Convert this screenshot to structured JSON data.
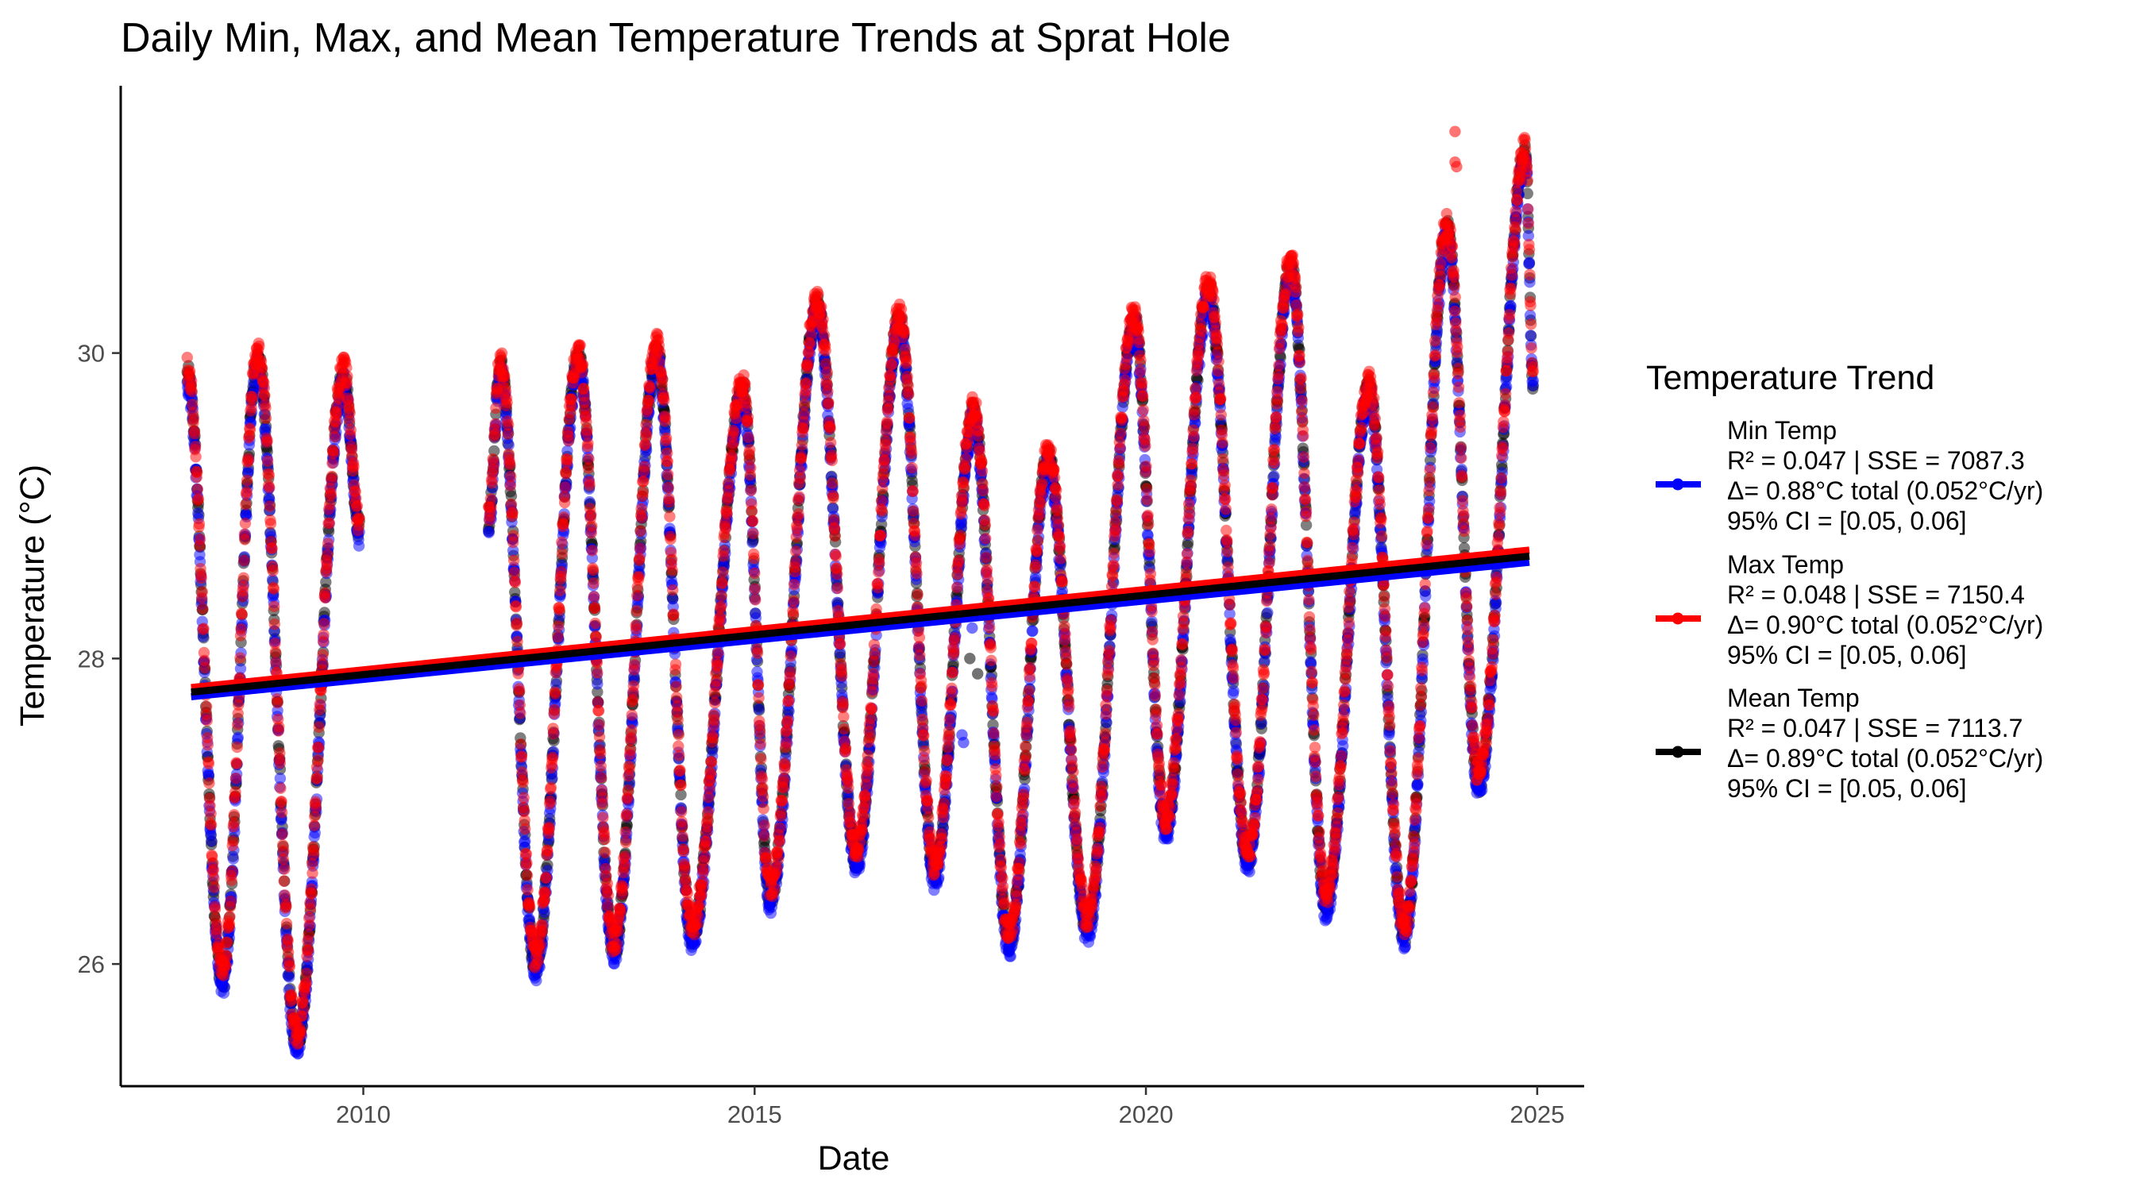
{
  "chart_data": {
    "type": "scatter",
    "title": "Daily Min, Max, and Mean Temperature Trends at Sprat Hole",
    "xlabel": "Date",
    "ylabel": "Temperature (°C)",
    "xlim": [
      2006.9,
      2025.6
    ],
    "ylim": [
      25.2,
      31.75
    ],
    "xticks": [
      2010,
      2015,
      2020,
      2025
    ],
    "yticks": [
      26,
      28,
      30
    ],
    "grid": false,
    "legend": {
      "title": "Temperature Trend",
      "placement": "right",
      "entries": [
        {
          "name": "Min Temp",
          "lines": [
            "R² = 0.047 | SSE = 7087.3",
            "Δ= 0.88°C total (0.052°C/yr)",
            "95% CI = [0.05, 0.06]"
          ]
        },
        {
          "name": "Max Temp",
          "lines": [
            "R² = 0.048 | SSE = 7150.4",
            "Δ= 0.90°C total (0.052°C/yr)",
            "95% CI = [0.05, 0.06]"
          ]
        },
        {
          "name": "Mean Temp",
          "lines": [
            "R² = 0.047 | SSE = 7113.7",
            "Δ= 0.89°C total (0.052°C/yr)",
            "95% CI = [0.05, 0.06]"
          ]
        }
      ]
    },
    "series": [
      {
        "key": "min",
        "color": "#0000ff",
        "trend": {
          "x": [
            2007.8,
            2024.9
          ],
          "y": [
            27.75,
            28.63
          ]
        }
      },
      {
        "key": "max",
        "color": "#ff0000",
        "trend": {
          "x": [
            2007.8,
            2024.9
          ],
          "y": [
            27.81,
            28.71
          ]
        }
      },
      {
        "key": "mean",
        "color": "#000000",
        "trend": {
          "x": [
            2007.8,
            2024.9
          ],
          "y": [
            27.78,
            28.67
          ]
        }
      }
    ],
    "segments": [
      {
        "start": 2007.75,
        "end": 2009.95,
        "path": [
          [
            2007.75,
            29.85
          ],
          [
            2008.2,
            25.9
          ],
          [
            2008.65,
            29.95
          ],
          [
            2009.15,
            25.5
          ],
          [
            2009.75,
            29.85
          ],
          [
            2009.95,
            28.85
          ]
        ]
      },
      {
        "start": 2011.6,
        "end": 2024.95,
        "path": [
          [
            2011.6,
            28.9
          ],
          [
            2011.75,
            29.9
          ],
          [
            2012.2,
            26.0
          ],
          [
            2012.75,
            29.95
          ],
          [
            2013.2,
            26.1
          ],
          [
            2013.75,
            30.0
          ],
          [
            2014.2,
            26.2
          ],
          [
            2014.85,
            29.75
          ],
          [
            2015.2,
            26.45
          ],
          [
            2015.8,
            30.3
          ],
          [
            2016.3,
            26.7
          ],
          [
            2016.85,
            30.2
          ],
          [
            2017.3,
            26.6
          ],
          [
            2017.8,
            29.6
          ],
          [
            2018.25,
            26.15
          ],
          [
            2018.75,
            29.3
          ],
          [
            2019.25,
            26.25
          ],
          [
            2019.85,
            30.2
          ],
          [
            2020.25,
            26.9
          ],
          [
            2020.8,
            30.4
          ],
          [
            2021.3,
            26.7
          ],
          [
            2021.85,
            30.55
          ],
          [
            2022.3,
            26.4
          ],
          [
            2022.85,
            29.75
          ],
          [
            2023.3,
            26.2
          ],
          [
            2023.85,
            30.8
          ],
          [
            2024.25,
            27.2
          ],
          [
            2024.85,
            31.3
          ],
          [
            2024.95,
            29.8
          ]
        ]
      }
    ],
    "outliers": [
      {
        "series": "max",
        "x": 2023.95,
        "y": 31.45
      },
      {
        "series": "max",
        "x": 2023.95,
        "y": 31.25
      },
      {
        "series": "max",
        "x": 2023.97,
        "y": 31.22
      },
      {
        "series": "min",
        "x": 2017.65,
        "y": 27.5
      },
      {
        "series": "min",
        "x": 2017.67,
        "y": 27.45
      },
      {
        "series": "min",
        "x": 2017.78,
        "y": 28.2
      },
      {
        "series": "mean",
        "x": 2017.75,
        "y": 28.0
      },
      {
        "series": "mean",
        "x": 2017.85,
        "y": 27.9
      }
    ]
  }
}
